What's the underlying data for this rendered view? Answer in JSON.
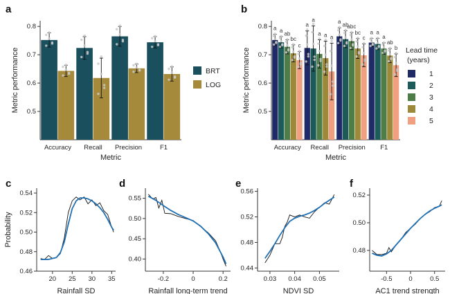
{
  "panels": {
    "a": "a",
    "b": "b",
    "c": "c",
    "d": "d",
    "e": "e",
    "f": "f"
  },
  "colors": {
    "BRT": "#1a4f5e",
    "LOG": "#a58a3c",
    "lead": [
      "#1f2a66",
      "#1d5a5a",
      "#4e7d47",
      "#9c8a3a",
      "#f0a080"
    ],
    "fit": "#1f6fb2",
    "raw": "#111111"
  },
  "chart_data": [
    {
      "id": "a",
      "type": "bar",
      "categories": [
        "Accuracy",
        "Recall",
        "Precision",
        "F1"
      ],
      "series": [
        {
          "name": "BRT",
          "values": [
            0.752,
            0.724,
            0.765,
            0.744
          ],
          "err": [
            0.025,
            0.04,
            0.035,
            0.02
          ]
        },
        {
          "name": "LOG",
          "values": [
            0.643,
            0.618,
            0.652,
            0.632
          ],
          "err": [
            0.02,
            0.07,
            0.015,
            0.025
          ]
        }
      ],
      "ylim": [
        0.4,
        0.82
      ],
      "yticks": [
        "0.5",
        "0.6",
        "0.7",
        "0.8"
      ],
      "ytick_values": [
        0.5,
        0.6,
        0.7,
        0.8
      ],
      "xlabel": "Metric",
      "ylabel": "Metric performance",
      "legend": [
        "BRT",
        "LOG"
      ]
    },
    {
      "id": "b",
      "type": "bar",
      "categories": [
        "Accuracy",
        "Recall",
        "Precision",
        "F1"
      ],
      "series": [
        {
          "name": "1",
          "values": [
            0.752,
            0.724,
            0.765,
            0.743
          ],
          "err": [
            0.02,
            0.06,
            0.03,
            0.015
          ]
        },
        {
          "name": "2",
          "values": [
            0.744,
            0.722,
            0.755,
            0.738
          ],
          "err": [
            0.02,
            0.08,
            0.03,
            0.02
          ]
        },
        {
          "name": "3",
          "values": [
            0.728,
            0.703,
            0.748,
            0.722
          ],
          "err": [
            0.025,
            0.05,
            0.03,
            0.02
          ]
        },
        {
          "name": "4",
          "values": [
            0.705,
            0.688,
            0.722,
            0.697
          ],
          "err": [
            0.03,
            0.06,
            0.035,
            0.025
          ]
        },
        {
          "name": "5",
          "values": [
            0.681,
            0.641,
            0.698,
            0.663
          ],
          "err": [
            0.03,
            0.1,
            0.04,
            0.04
          ]
        }
      ],
      "letters": [
        [
          "a",
          "a",
          "ab",
          "bc",
          "c"
        ],
        [
          "a",
          "a",
          "a",
          "a",
          "a"
        ],
        [
          "a",
          "ab",
          "abc",
          "bc",
          "c"
        ],
        [
          "a",
          "a",
          "a",
          "ab",
          "b"
        ]
      ],
      "ylim": [
        0.4,
        0.82
      ],
      "yticks": [
        "0.5",
        "0.6",
        "0.7",
        "0.8"
      ],
      "ytick_values": [
        0.5,
        0.6,
        0.7,
        0.8
      ],
      "xlabel": "Metric",
      "ylabel": "Metric performance",
      "legend_title": "Lead time\n(years)",
      "legend": [
        "1",
        "2",
        "3",
        "4",
        "5"
      ]
    },
    {
      "id": "c",
      "type": "line",
      "xlabel": "Rainfall SD",
      "ylabel": "Probability",
      "xlim": [
        16,
        36
      ],
      "ylim": [
        0.46,
        0.545
      ],
      "xticks": [
        "20",
        "25",
        "30",
        "35"
      ],
      "xtick_values": [
        20,
        25,
        30,
        35
      ],
      "yticks": [
        "0.46",
        "0.48",
        "0.50",
        "0.52",
        "0.54"
      ],
      "ytick_values": [
        0.46,
        0.48,
        0.5,
        0.52,
        0.54
      ],
      "raw": {
        "x": [
          17,
          18,
          19,
          20,
          21,
          22,
          23,
          24,
          25,
          26,
          27,
          28,
          29,
          30,
          31,
          32,
          33,
          34,
          35,
          35.5
        ],
        "y": [
          0.473,
          0.472,
          0.476,
          0.473,
          0.474,
          0.478,
          0.494,
          0.52,
          0.532,
          0.536,
          0.533,
          0.536,
          0.529,
          0.533,
          0.527,
          0.53,
          0.522,
          0.518,
          0.505,
          0.5
        ]
      },
      "fit": {
        "x": [
          17,
          19,
          21,
          22,
          23,
          24,
          25,
          26,
          27,
          28,
          29,
          30,
          31,
          32,
          33,
          34,
          35,
          35.5
        ],
        "y": [
          0.472,
          0.472,
          0.474,
          0.479,
          0.49,
          0.508,
          0.524,
          0.532,
          0.535,
          0.535,
          0.534,
          0.532,
          0.529,
          0.525,
          0.52,
          0.513,
          0.505,
          0.502
        ]
      }
    },
    {
      "id": "d",
      "type": "line",
      "xlabel": "Rainfall long-term trend",
      "ylabel": "",
      "xlim": [
        -0.32,
        0.25
      ],
      "ylim": [
        0.37,
        0.575
      ],
      "xticks": [
        "-0.2",
        "0",
        "0.2"
      ],
      "xtick_values": [
        -0.2,
        0,
        0.2
      ],
      "yticks": [
        "0.40",
        "0.45",
        "0.50",
        "0.55"
      ],
      "ytick_values": [
        0.4,
        0.45,
        0.5,
        0.55
      ],
      "raw": {
        "x": [
          -0.3,
          -0.27,
          -0.25,
          -0.23,
          -0.21,
          -0.19,
          -0.15,
          -0.1,
          -0.05,
          0,
          0.05,
          0.1,
          0.15,
          0.18,
          0.2,
          0.22
        ],
        "y": [
          0.56,
          0.548,
          0.552,
          0.526,
          0.545,
          0.513,
          0.512,
          0.505,
          0.5,
          0.495,
          0.48,
          0.465,
          0.445,
          0.42,
          0.4,
          0.382
        ]
      },
      "fit": {
        "x": [
          -0.3,
          -0.25,
          -0.2,
          -0.15,
          -0.1,
          -0.05,
          0,
          0.05,
          0.1,
          0.15,
          0.2,
          0.22
        ],
        "y": [
          0.555,
          0.545,
          0.532,
          0.52,
          0.51,
          0.502,
          0.494,
          0.481,
          0.463,
          0.44,
          0.405,
          0.388
        ]
      }
    },
    {
      "id": "e",
      "type": "line",
      "xlabel": "NDVI SD",
      "ylabel": "",
      "xlim": [
        0.025,
        0.058
      ],
      "ylim": [
        0.435,
        0.565
      ],
      "xticks": [
        "0.03",
        "0.04",
        "0.05"
      ],
      "xtick_values": [
        0.03,
        0.04,
        0.05
      ],
      "yticks": [
        "0.44",
        "0.48",
        "0.52",
        "0.56"
      ],
      "ytick_values": [
        0.44,
        0.48,
        0.52,
        0.56
      ],
      "raw": {
        "x": [
          0.028,
          0.03,
          0.032,
          0.034,
          0.035,
          0.036,
          0.037,
          0.038,
          0.04,
          0.042,
          0.044,
          0.046,
          0.048,
          0.05,
          0.052,
          0.054,
          0.056
        ],
        "y": [
          0.448,
          0.46,
          0.478,
          0.478,
          0.488,
          0.505,
          0.512,
          0.523,
          0.52,
          0.523,
          0.52,
          0.518,
          0.528,
          0.535,
          0.542,
          0.54,
          0.555
        ]
      },
      "fit": {
        "x": [
          0.028,
          0.03,
          0.032,
          0.034,
          0.036,
          0.038,
          0.04,
          0.042,
          0.044,
          0.046,
          0.048,
          0.05,
          0.052,
          0.054,
          0.056
        ],
        "y": [
          0.455,
          0.466,
          0.478,
          0.491,
          0.503,
          0.513,
          0.518,
          0.521,
          0.523,
          0.526,
          0.53,
          0.535,
          0.541,
          0.546,
          0.551
        ]
      }
    },
    {
      "id": "f",
      "type": "line",
      "xlabel": "AC1 trend strength",
      "ylabel": "",
      "xlim": [
        -0.85,
        0.72
      ],
      "ylim": [
        0.465,
        0.525
      ],
      "xticks": [
        "-0.5",
        "0",
        "0.5"
      ],
      "xtick_values": [
        -0.5,
        0,
        0.5
      ],
      "yticks": [
        "0.48",
        "0.50",
        "0.52"
      ],
      "ytick_values": [
        0.48,
        0.5,
        0.52
      ],
      "raw": {
        "x": [
          -0.8,
          -0.7,
          -0.6,
          -0.5,
          -0.45,
          -0.4,
          -0.3,
          -0.2,
          -0.1,
          0,
          0.1,
          0.2,
          0.3,
          0.4,
          0.5,
          0.6,
          0.65
        ],
        "y": [
          0.48,
          0.477,
          0.477,
          0.478,
          0.482,
          0.479,
          0.484,
          0.488,
          0.493,
          0.496,
          0.499,
          0.503,
          0.506,
          0.508,
          0.511,
          0.512,
          0.516
        ]
      },
      "fit": {
        "x": [
          -0.8,
          -0.7,
          -0.6,
          -0.5,
          -0.4,
          -0.3,
          -0.2,
          -0.1,
          0,
          0.1,
          0.2,
          0.3,
          0.4,
          0.5,
          0.6,
          0.65
        ],
        "y": [
          0.478,
          0.4765,
          0.476,
          0.4775,
          0.48,
          0.484,
          0.488,
          0.492,
          0.496,
          0.4995,
          0.503,
          0.506,
          0.5085,
          0.5105,
          0.512,
          0.513
        ]
      }
    }
  ]
}
